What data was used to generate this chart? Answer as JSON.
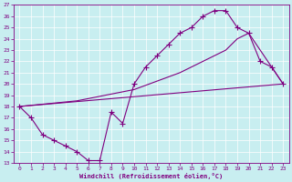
{
  "xlabel": "Windchill (Refroidissement éolien,°C)",
  "bg_color": "#c8eef0",
  "line_color": "#800080",
  "markersize": 2.5,
  "linewidth": 0.8,
  "xlim": [
    -0.5,
    23.5
  ],
  "ylim": [
    13,
    27
  ],
  "xticks": [
    0,
    1,
    2,
    3,
    4,
    5,
    6,
    7,
    8,
    9,
    10,
    11,
    12,
    13,
    14,
    15,
    16,
    17,
    18,
    19,
    20,
    21,
    22,
    23
  ],
  "yticks": [
    13,
    14,
    15,
    16,
    17,
    18,
    19,
    20,
    21,
    22,
    23,
    24,
    25,
    26,
    27
  ],
  "series_main": [
    [
      0,
      18
    ],
    [
      1,
      17
    ],
    [
      2,
      15.5
    ],
    [
      3,
      15
    ],
    [
      4,
      14.5
    ],
    [
      5,
      14.0
    ],
    [
      6,
      13.2
    ],
    [
      7,
      13.2
    ],
    [
      8,
      17.5
    ],
    [
      9,
      16.5
    ],
    [
      10,
      20.0
    ],
    [
      11,
      21.5
    ],
    [
      12,
      22.5
    ],
    [
      13,
      23.5
    ],
    [
      14,
      24.5
    ],
    [
      15,
      25.0
    ],
    [
      16,
      26.0
    ],
    [
      17,
      26.5
    ],
    [
      18,
      26.5
    ],
    [
      19,
      25.0
    ],
    [
      20,
      24.5
    ],
    [
      21,
      22.0
    ],
    [
      22,
      21.5
    ],
    [
      23,
      20.0
    ]
  ],
  "series_straight": [
    [
      0,
      18.0
    ],
    [
      23,
      20.0
    ]
  ],
  "series_envelope": [
    [
      0,
      18.0
    ],
    [
      5,
      18.5
    ],
    [
      10,
      19.5
    ],
    [
      14,
      21.0
    ],
    [
      17,
      22.5
    ],
    [
      18,
      23.0
    ],
    [
      19,
      24.0
    ],
    [
      20,
      24.5
    ],
    [
      23,
      20.0
    ]
  ]
}
